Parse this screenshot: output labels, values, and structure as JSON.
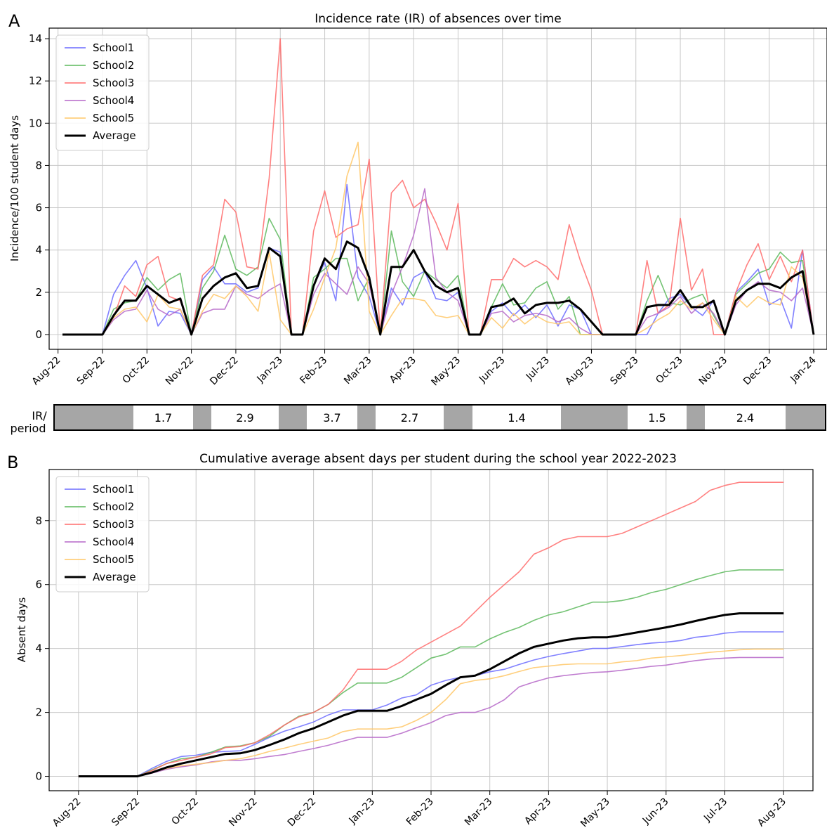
{
  "panel_labels": [
    "A",
    "B"
  ],
  "period_table": {
    "header": "IR/\nperiod",
    "values": [
      "1.7",
      "2.9",
      "3.7",
      "2.7",
      "1.4",
      "1.5",
      "2.4"
    ],
    "gray_color": "#a6a6a6"
  },
  "colors": {
    "School1": "#6b6bff",
    "School2": "#5cb85c",
    "School3": "#ff6b6b",
    "School4": "#b566c8",
    "School5": "#ffc766",
    "Average": "#000000"
  },
  "chart_data": [
    {
      "type": "line",
      "title": "Incidence rate (IR) of absences over time",
      "xlabel": "",
      "ylabel": "Incidence/100 student days",
      "ylim": [
        -0.7,
        14.5
      ],
      "yticks": [
        0,
        2,
        4,
        6,
        8,
        10,
        12,
        14
      ],
      "xlim": [
        -0.2,
        17.3
      ],
      "xticks": [
        "Aug-22",
        "Sep-22",
        "Oct-22",
        "Nov-22",
        "Dec-22",
        "Jan-23",
        "Feb-23",
        "Mar-23",
        "Apr-23",
        "May-23",
        "Jun-23",
        "Jul-23",
        "Aug-23",
        "Sep-23",
        "Oct-23",
        "Nov-23",
        "Dec-23",
        "Jan-24"
      ],
      "grid": true,
      "legend": "top-left",
      "x": [
        0.1,
        0.4,
        0.7,
        1.0,
        1.25,
        1.5,
        1.75,
        2.0,
        2.25,
        2.5,
        2.75,
        3.0,
        3.25,
        3.5,
        3.75,
        4.0,
        4.25,
        4.5,
        4.75,
        5.0,
        5.25,
        5.5,
        5.75,
        6.0,
        6.25,
        6.5,
        6.75,
        7.0,
        7.25,
        7.5,
        7.75,
        8.0,
        8.25,
        8.5,
        8.75,
        9.0,
        9.25,
        9.5,
        9.75,
        10.0,
        10.25,
        10.5,
        10.75,
        11.0,
        11.25,
        11.5,
        11.75,
        12.0,
        12.25,
        12.5,
        12.75,
        13.0,
        13.25,
        13.5,
        13.75,
        14.0,
        14.25,
        14.5,
        14.75,
        15.0,
        15.25,
        15.5,
        15.75,
        16.0,
        16.25,
        16.5,
        16.75,
        17.0
      ],
      "series": [
        {
          "name": "School1",
          "values": [
            0,
            0,
            0,
            0,
            1.9,
            2.8,
            3.5,
            2.2,
            0.4,
            1.1,
            1.0,
            0,
            2.6,
            3.2,
            2.4,
            2.4,
            2.0,
            2.2,
            4.1,
            3.9,
            0,
            0,
            2.3,
            3.4,
            1.6,
            7.1,
            2.7,
            1.8,
            0,
            2.2,
            1.4,
            2.7,
            3.0,
            1.7,
            1.6,
            2.0,
            0,
            0,
            1.1,
            1.5,
            0.9,
            1.4,
            0.8,
            1.4,
            0.4,
            1.4,
            1.2,
            0,
            0,
            0,
            0,
            0,
            0,
            1.0,
            1.7,
            1.9,
            1.3,
            0.9,
            1.6,
            0,
            2.0,
            2.5,
            3.1,
            1.4,
            1.7,
            0.3,
            4.0,
            0
          ]
        },
        {
          "name": "School2",
          "values": [
            0,
            0,
            0,
            0,
            1.2,
            1.5,
            1.6,
            2.7,
            2.1,
            2.6,
            2.9,
            0,
            2.2,
            3.0,
            4.7,
            3.1,
            2.8,
            3.2,
            5.5,
            4.5,
            0,
            0,
            2.7,
            3.1,
            3.6,
            3.6,
            1.6,
            2.7,
            0,
            4.9,
            2.5,
            1.8,
            3.0,
            2.6,
            2.2,
            2.8,
            0,
            0,
            1.3,
            2.4,
            1.4,
            1.5,
            2.2,
            2.5,
            1.2,
            1.8,
            0,
            0,
            0,
            0,
            0,
            0,
            1.6,
            2.8,
            1.5,
            1.4,
            1.7,
            1.9,
            0.9,
            0,
            1.9,
            2.4,
            2.9,
            3.1,
            3.9,
            3.4,
            3.5,
            0
          ]
        },
        {
          "name": "School3",
          "values": [
            0,
            0,
            0,
            0,
            0.8,
            2.3,
            1.8,
            3.3,
            3.7,
            1.8,
            1.6,
            0,
            2.8,
            3.3,
            6.4,
            5.8,
            3.2,
            3.1,
            7.4,
            14.0,
            0,
            0,
            4.9,
            6.8,
            4.6,
            5.0,
            5.2,
            8.3,
            0,
            6.7,
            7.3,
            6.0,
            6.4,
            5.3,
            4.0,
            6.2,
            0,
            0,
            2.6,
            2.6,
            3.6,
            3.2,
            3.5,
            3.2,
            2.6,
            5.2,
            3.5,
            2.1,
            0,
            0,
            0,
            0,
            3.5,
            1.0,
            1.4,
            5.5,
            2.1,
            3.1,
            0,
            0,
            2.0,
            3.3,
            4.3,
            2.6,
            3.7,
            2.5,
            4.0,
            0
          ]
        },
        {
          "name": "School4",
          "values": [
            0,
            0,
            0,
            0,
            0.7,
            1.1,
            1.2,
            2.1,
            1.2,
            0.9,
            1.2,
            0,
            1.0,
            1.2,
            1.2,
            2.3,
            1.9,
            1.7,
            2.1,
            2.4,
            0,
            0,
            1.9,
            2.9,
            2.4,
            1.9,
            3.2,
            2.4,
            0,
            1.9,
            3.2,
            4.7,
            6.9,
            2.7,
            2.0,
            1.6,
            0,
            0,
            1.0,
            1.1,
            0.6,
            0.9,
            1.0,
            0.9,
            0.6,
            0.8,
            0.3,
            0,
            0,
            0,
            0,
            0,
            0.8,
            1.0,
            1.3,
            1.8,
            1.0,
            1.5,
            1.0,
            0,
            1.4,
            2.1,
            2.5,
            2.1,
            2.0,
            1.6,
            2.2,
            0
          ]
        },
        {
          "name": "School5",
          "values": [
            0,
            0,
            0,
            0,
            0.8,
            1.2,
            1.3,
            0.6,
            1.9,
            1.3,
            1.2,
            0,
            1.1,
            1.9,
            1.7,
            2.3,
            1.8,
            1.1,
            3.9,
            0.7,
            0,
            0,
            1.2,
            2.7,
            4.1,
            7.5,
            9.1,
            1.1,
            0,
            0.9,
            1.7,
            1.7,
            1.6,
            0.9,
            0.8,
            0.9,
            0,
            0,
            0.8,
            0.3,
            1.0,
            0.5,
            0.9,
            0.6,
            0.5,
            0.6,
            0,
            0,
            0,
            0,
            0,
            0,
            0.3,
            0.7,
            1.0,
            1.6,
            1.2,
            1.5,
            0.7,
            0,
            1.8,
            1.3,
            1.8,
            1.5,
            1.4,
            3.2,
            2.7,
            0
          ]
        },
        {
          "name": "Average",
          "values": [
            0,
            0,
            0,
            0,
            0.9,
            1.6,
            1.6,
            2.3,
            1.9,
            1.5,
            1.7,
            0,
            1.7,
            2.3,
            2.7,
            2.9,
            2.2,
            2.3,
            4.1,
            3.7,
            0,
            0,
            2.3,
            3.6,
            3.1,
            4.4,
            4.1,
            2.7,
            0,
            3.2,
            3.2,
            4.0,
            3.0,
            2.3,
            2.0,
            2.2,
            0,
            0,
            1.3,
            1.4,
            1.7,
            1.0,
            1.4,
            1.5,
            1.5,
            1.6,
            1.2,
            0.6,
            0,
            0,
            0,
            0,
            1.3,
            1.4,
            1.4,
            2.1,
            1.3,
            1.3,
            1.6,
            0,
            1.6,
            2.1,
            2.4,
            2.4,
            2.2,
            2.7,
            3.0,
            0
          ]
        }
      ]
    },
    {
      "type": "line",
      "title": "Cumulative average absent days per student during the school year 2022-2023",
      "xlabel": "",
      "ylabel": "Absent days",
      "ylim": [
        -0.45,
        9.6
      ],
      "yticks": [
        0,
        2,
        4,
        6,
        8
      ],
      "xlim": [
        -0.5,
        12.5
      ],
      "xticks": [
        "Aug-22",
        "Sep-22",
        "Oct-22",
        "Nov-22",
        "Dec-22",
        "Jan-23",
        "Feb-23",
        "Mar-23",
        "Apr-23",
        "May-23",
        "Jun-23",
        "Jul-23",
        "Aug-23"
      ],
      "grid": true,
      "legend": "top-left",
      "x": [
        0,
        1,
        1.25,
        1.5,
        1.75,
        2,
        2.25,
        2.5,
        2.75,
        3,
        3.25,
        3.5,
        3.75,
        4,
        4.25,
        4.5,
        4.75,
        5,
        5.25,
        5.5,
        5.75,
        6,
        6.25,
        6.5,
        6.75,
        7,
        7.25,
        7.5,
        7.75,
        8,
        8.25,
        8.5,
        8.75,
        9,
        9.25,
        9.5,
        9.75,
        10,
        10.25,
        10.5,
        10.75,
        11,
        11.25,
        11.5,
        11.75,
        12
      ],
      "series": [
        {
          "name": "School1",
          "values": [
            0,
            0,
            0.25,
            0.47,
            0.62,
            0.66,
            0.75,
            0.78,
            0.8,
            1.0,
            1.22,
            1.41,
            1.55,
            1.7,
            1.92,
            2.08,
            2.08,
            2.08,
            2.23,
            2.45,
            2.55,
            2.85,
            3.0,
            3.1,
            3.15,
            3.27,
            3.35,
            3.5,
            3.64,
            3.75,
            3.84,
            3.92,
            4.0,
            4.0,
            4.06,
            4.12,
            4.17,
            4.2,
            4.25,
            4.35,
            4.4,
            4.48,
            4.52,
            4.52,
            4.52,
            4.52
          ]
        },
        {
          "name": "School2",
          "values": [
            0,
            0,
            0.2,
            0.4,
            0.55,
            0.6,
            0.75,
            0.92,
            0.95,
            1.05,
            1.25,
            1.6,
            1.88,
            2.0,
            2.25,
            2.62,
            2.92,
            2.92,
            2.92,
            3.1,
            3.4,
            3.7,
            3.82,
            4.05,
            4.05,
            4.3,
            4.5,
            4.66,
            4.88,
            5.05,
            5.15,
            5.3,
            5.45,
            5.45,
            5.5,
            5.6,
            5.75,
            5.85,
            6.0,
            6.15,
            6.28,
            6.4,
            6.46,
            6.46,
            6.46,
            6.46
          ]
        },
        {
          "name": "School3",
          "values": [
            0,
            0,
            0.18,
            0.4,
            0.5,
            0.6,
            0.7,
            0.9,
            0.93,
            1.05,
            1.3,
            1.6,
            1.86,
            2.0,
            2.25,
            2.7,
            3.35,
            3.35,
            3.35,
            3.6,
            3.95,
            4.2,
            4.45,
            4.7,
            5.15,
            5.6,
            6.0,
            6.4,
            6.95,
            7.15,
            7.4,
            7.5,
            7.5,
            7.5,
            7.6,
            7.8,
            8.0,
            8.2,
            8.4,
            8.6,
            8.95,
            9.1,
            9.2,
            9.2,
            9.2,
            9.2
          ]
        },
        {
          "name": "School4",
          "values": [
            0,
            0,
            0.1,
            0.22,
            0.3,
            0.36,
            0.45,
            0.5,
            0.5,
            0.55,
            0.62,
            0.68,
            0.78,
            0.87,
            0.97,
            1.1,
            1.22,
            1.22,
            1.22,
            1.35,
            1.52,
            1.68,
            1.9,
            2.0,
            2.0,
            2.15,
            2.4,
            2.8,
            2.95,
            3.08,
            3.15,
            3.2,
            3.25,
            3.27,
            3.32,
            3.38,
            3.44,
            3.48,
            3.55,
            3.62,
            3.67,
            3.7,
            3.72,
            3.72,
            3.72,
            3.72
          ]
        },
        {
          "name": "School5",
          "values": [
            0,
            0,
            0.12,
            0.25,
            0.33,
            0.38,
            0.43,
            0.5,
            0.55,
            0.65,
            0.78,
            0.88,
            1.0,
            1.1,
            1.2,
            1.4,
            1.48,
            1.48,
            1.48,
            1.55,
            1.75,
            2.0,
            2.4,
            2.9,
            3.0,
            3.05,
            3.15,
            3.28,
            3.4,
            3.45,
            3.5,
            3.52,
            3.52,
            3.52,
            3.58,
            3.62,
            3.7,
            3.74,
            3.78,
            3.83,
            3.88,
            3.92,
            3.96,
            3.98,
            3.98,
            3.98
          ]
        },
        {
          "name": "Average",
          "values": [
            0,
            0,
            0.12,
            0.28,
            0.4,
            0.5,
            0.6,
            0.7,
            0.72,
            0.82,
            0.98,
            1.15,
            1.35,
            1.5,
            1.7,
            1.9,
            2.05,
            2.05,
            2.05,
            2.2,
            2.4,
            2.58,
            2.85,
            3.1,
            3.15,
            3.35,
            3.6,
            3.85,
            4.05,
            4.15,
            4.25,
            4.32,
            4.35,
            4.35,
            4.42,
            4.5,
            4.58,
            4.66,
            4.75,
            4.86,
            4.96,
            5.05,
            5.1,
            5.1,
            5.1,
            5.1
          ]
        }
      ]
    }
  ]
}
